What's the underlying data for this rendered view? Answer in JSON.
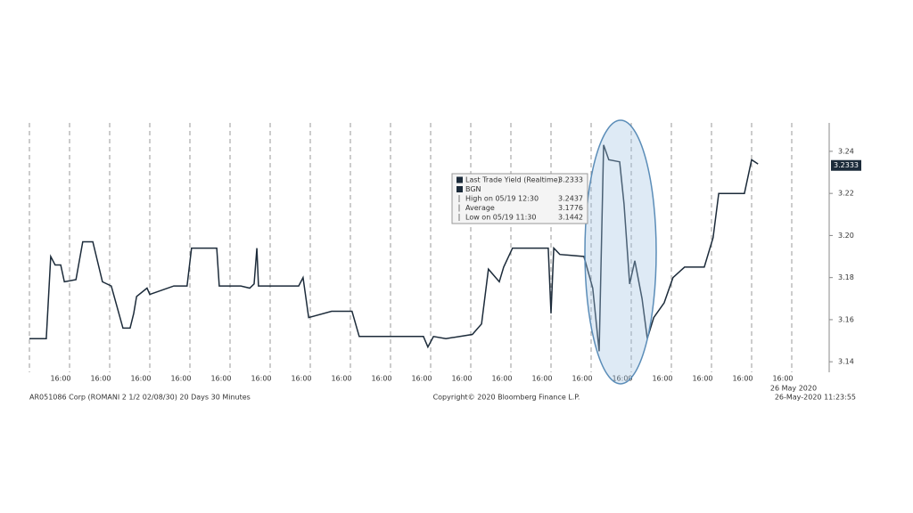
{
  "chart_data": {
    "type": "line",
    "x": [
      0,
      0.42,
      0.53,
      0.64,
      0.78,
      0.87,
      1.16,
      1.33,
      1.58,
      1.82,
      2.04,
      2.33,
      2.51,
      2.6,
      2.67,
      2.93,
      3.0,
      3.6,
      3.93,
      4.04,
      4.67,
      4.73,
      5.27,
      5.49,
      5.6,
      5.67,
      5.71,
      6.71,
      6.82,
      6.96,
      7.53,
      8.04,
      8.22,
      9.82,
      9.93,
      10.07,
      10.38,
      11.04,
      11.27,
      11.44,
      11.71,
      11.82,
      12.04,
      12.93,
      13.0,
      13.07,
      13.22,
      13.82,
      14.04,
      14.2,
      14.31,
      14.44,
      14.71,
      14.82,
      14.96,
      15.09,
      15.27,
      15.4,
      15.56,
      15.82,
      16.04,
      16.33,
      16.82,
      17.04,
      17.18,
      17.82,
      18.0,
      18.16
    ],
    "series": [
      {
        "name": "Last Trade Yield (Realtime)",
        "color": "#1c2b3a",
        "values": [
          3.151,
          3.151,
          3.19,
          3.186,
          3.186,
          3.178,
          3.179,
          3.197,
          3.197,
          3.178,
          3.176,
          3.156,
          3.156,
          3.163,
          3.171,
          3.175,
          3.172,
          3.176,
          3.176,
          3.194,
          3.194,
          3.176,
          3.176,
          3.175,
          3.177,
          3.194,
          3.176,
          3.176,
          3.18,
          3.161,
          3.164,
          3.164,
          3.152,
          3.152,
          3.147,
          3.152,
          3.151,
          3.153,
          3.158,
          3.184,
          3.178,
          3.185,
          3.194,
          3.194,
          3.163,
          3.194,
          3.191,
          3.19,
          3.175,
          3.145,
          3.243,
          3.236,
          3.235,
          3.215,
          3.177,
          3.188,
          3.17,
          3.151,
          3.161,
          3.168,
          3.18,
          3.185,
          3.185,
          3.199,
          3.22,
          3.22,
          3.236,
          3.234
        ]
      }
    ],
    "last_value": 3.2333,
    "xlim": [
      0,
      20
    ],
    "xticks": [
      {
        "value": 1,
        "label": "16:00"
      },
      {
        "value": 2,
        "label": "16:00"
      },
      {
        "value": 3,
        "label": "16:00"
      },
      {
        "value": 4,
        "label": "16:00"
      },
      {
        "value": 5,
        "label": "16:00"
      },
      {
        "value": 6,
        "label": "16:00"
      },
      {
        "value": 7,
        "label": "16:00"
      },
      {
        "value": 8,
        "label": "16:00"
      },
      {
        "value": 9,
        "label": "16:00"
      },
      {
        "value": 10,
        "label": "16:00"
      },
      {
        "value": 11,
        "label": "16:00"
      },
      {
        "value": 12,
        "label": "16:00"
      },
      {
        "value": 13,
        "label": "16:00"
      },
      {
        "value": 14,
        "label": "16:00"
      },
      {
        "value": 15,
        "label": "16:00"
      },
      {
        "value": 16,
        "label": "16:00"
      },
      {
        "value": 17,
        "label": "16:00"
      },
      {
        "value": 18,
        "label": "16:00"
      },
      {
        "value": 19,
        "label": "16:00"
      }
    ],
    "x_date_label": "26 May 2020",
    "ylim": [
      3.135,
      3.2535
    ],
    "yticks": [
      3.14,
      3.16,
      3.18,
      {
        "value": 3.2,
        "label": "3.20"
      },
      3.22,
      3.24
    ],
    "grid": true,
    "tooltip": {
      "rows": [
        {
          "label": "Last Trade Yield (Realtime)",
          "value": 3.2333
        },
        {
          "label": "BGN"
        },
        {
          "label": "High on 05/19 12:30",
          "value": 3.2437
        },
        {
          "label": "Average",
          "value": 3.1776
        },
        {
          "label": "Low on 05/19 11:30",
          "value": 3.1442
        }
      ]
    },
    "footer": {
      "left": "AR051086 Corp (ROMANI 2 1/2 02/08/30) 20 Days 30 Minutes",
      "center": "Copyright© 2020 Bloomberg Finance L.P.",
      "right": "26-May-2020 11:23:55"
    }
  }
}
